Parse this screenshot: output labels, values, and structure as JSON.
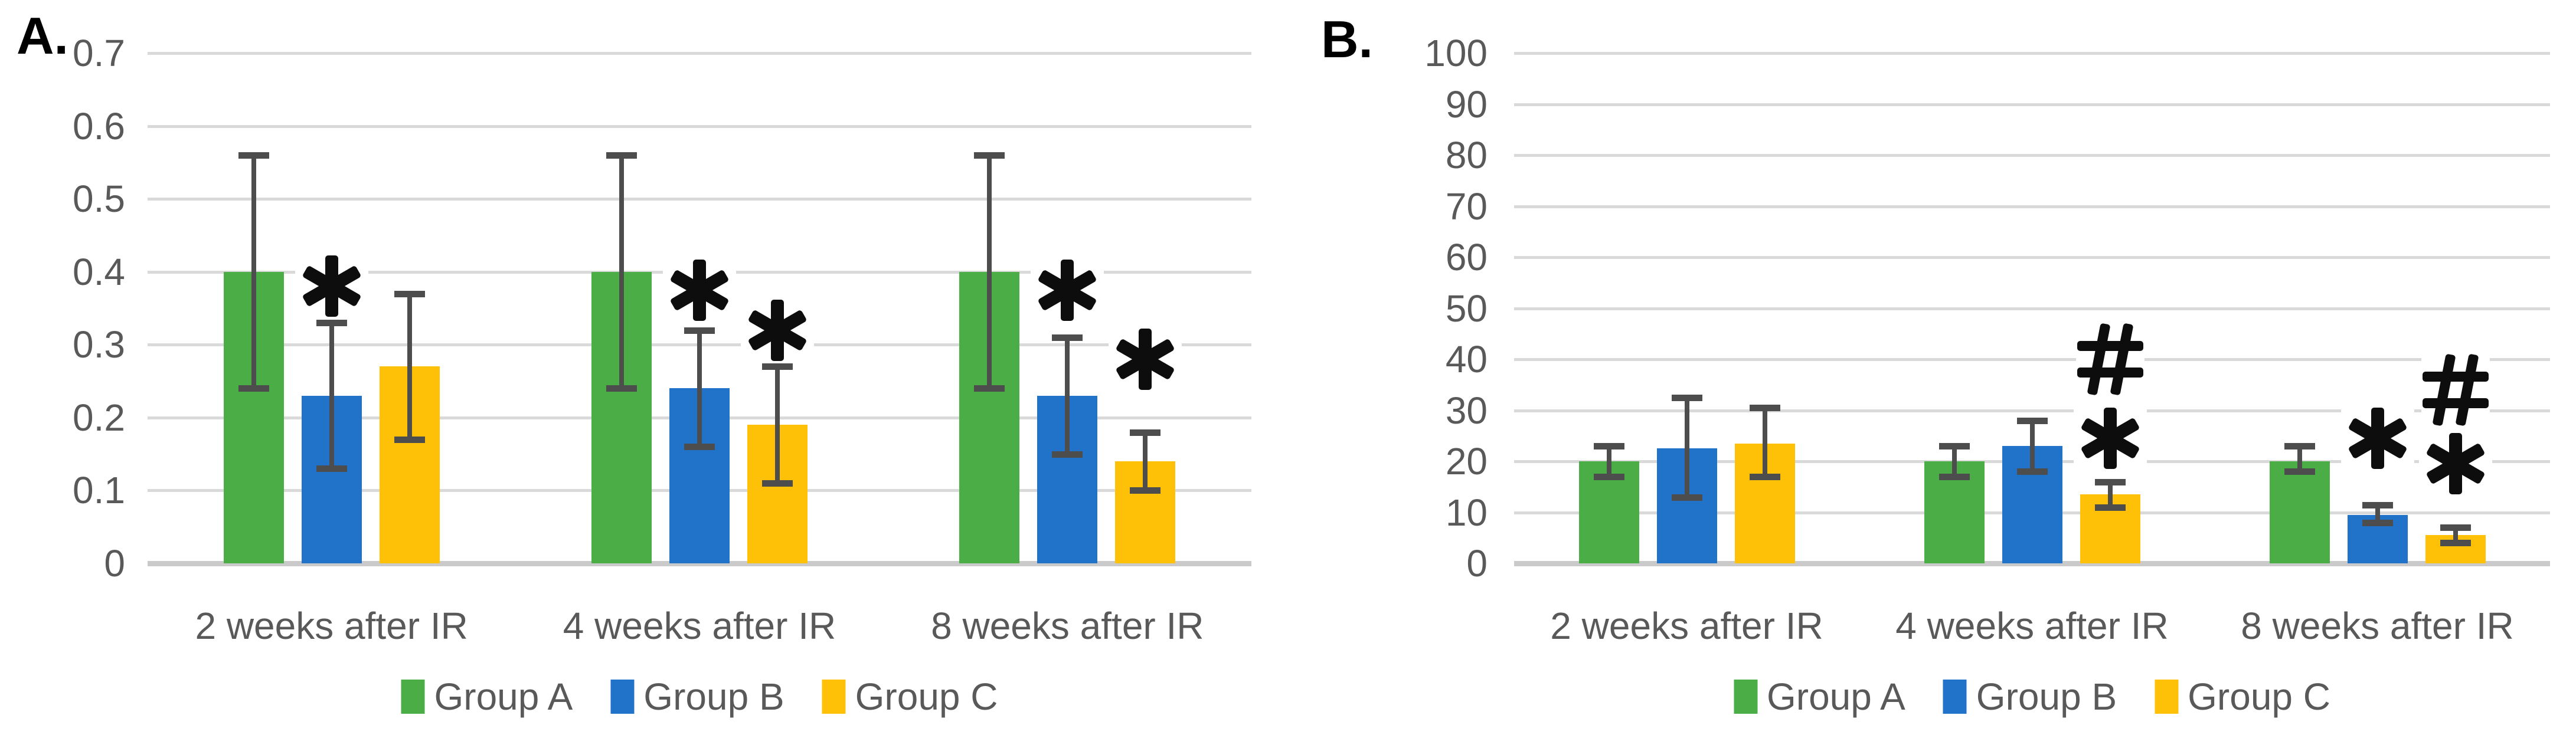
{
  "figure": {
    "background": "#ffffff"
  },
  "colors": {
    "grid": "#d9d9d9",
    "axis_line": "#cacaca",
    "axis_text": "#595959",
    "error_bar": "#4d4d4d",
    "marker": "#0d0d0d",
    "group_a_green": "#4bad46",
    "group_b_blue": "#2173c9",
    "group_c_yellow": "#fec107"
  },
  "chart_data": [
    {
      "id": "A",
      "panel_label": "A.",
      "type": "bar",
      "title": "",
      "xlabel": "",
      "ylabel": "",
      "grid": true,
      "ylim": [
        0,
        0.7
      ],
      "yticks": [
        {
          "v": 0,
          "label": "0"
        },
        {
          "v": 0.1,
          "label": "0.1"
        },
        {
          "v": 0.2,
          "label": "0.2"
        },
        {
          "v": 0.3,
          "label": "0.3"
        },
        {
          "v": 0.4,
          "label": "0.4"
        },
        {
          "v": 0.5,
          "label": "0.5"
        },
        {
          "v": 0.6,
          "label": "0.6"
        },
        {
          "v": 0.7,
          "label": "0.7"
        }
      ],
      "categories": [
        "2 weeks after IR",
        "4 weeks after IR",
        "8 weeks after IR"
      ],
      "series": [
        {
          "name": "Group A",
          "color": "#4bad46",
          "values": [
            0.4,
            0.4,
            0.4
          ],
          "error_low": [
            0.24,
            0.24,
            0.24
          ],
          "error_high": [
            0.56,
            0.56,
            0.56
          ]
        },
        {
          "name": "Group B",
          "color": "#2173c9",
          "values": [
            0.23,
            0.24,
            0.23
          ],
          "error_low": [
            0.13,
            0.16,
            0.15
          ],
          "error_high": [
            0.33,
            0.32,
            0.31
          ]
        },
        {
          "name": "Group C",
          "color": "#fec107",
          "values": [
            0.27,
            0.19,
            0.14
          ],
          "error_low": [
            0.17,
            0.11,
            0.1
          ],
          "error_high": [
            0.37,
            0.27,
            0.18
          ]
        }
      ],
      "significance_markers": [
        {
          "category_index": 0,
          "series": "Group B",
          "symbol": "*",
          "y": 0.38
        },
        {
          "category_index": 1,
          "series": "Group B",
          "symbol": "*",
          "y": 0.375
        },
        {
          "category_index": 1,
          "series": "Group C",
          "symbol": "*",
          "y": 0.32
        },
        {
          "category_index": 2,
          "series": "Group B",
          "symbol": "*",
          "y": 0.375
        },
        {
          "category_index": 2,
          "series": "Group C",
          "symbol": "*",
          "y": 0.28
        }
      ],
      "legend": {
        "position": "bottom",
        "entries": [
          "Group A",
          "Group B",
          "Group C"
        ]
      }
    },
    {
      "id": "B",
      "panel_label": "B.",
      "type": "bar",
      "title": "",
      "xlabel": "",
      "ylabel": "",
      "grid": true,
      "ylim": [
        0,
        100
      ],
      "yticks": [
        {
          "v": 0,
          "label": "0"
        },
        {
          "v": 10,
          "label": "10"
        },
        {
          "v": 20,
          "label": "20"
        },
        {
          "v": 30,
          "label": "30"
        },
        {
          "v": 40,
          "label": "40"
        },
        {
          "v": 50,
          "label": "50"
        },
        {
          "v": 60,
          "label": "60"
        },
        {
          "v": 70,
          "label": "70"
        },
        {
          "v": 80,
          "label": "80"
        },
        {
          "v": 90,
          "label": "90"
        },
        {
          "v": 100,
          "label": "100"
        }
      ],
      "categories": [
        "2 weeks after IR",
        "4 weeks after IR",
        "8 weeks after IR"
      ],
      "series": [
        {
          "name": "Group A",
          "color": "#4bad46",
          "values": [
            20,
            20,
            20
          ],
          "error_low": [
            17,
            17,
            18
          ],
          "error_high": [
            23,
            23,
            23
          ]
        },
        {
          "name": "Group B",
          "color": "#2173c9",
          "values": [
            22.5,
            23,
            9.5
          ],
          "error_low": [
            13,
            18,
            8
          ],
          "error_high": [
            32.5,
            28,
            11.5
          ]
        },
        {
          "name": "Group C",
          "color": "#fec107",
          "values": [
            23.5,
            13.5,
            5.5
          ],
          "error_low": [
            17,
            11,
            4
          ],
          "error_high": [
            30.5,
            16,
            7
          ]
        }
      ],
      "significance_markers": [
        {
          "category_index": 1,
          "series": "Group C",
          "symbol": "#",
          "y": 40
        },
        {
          "category_index": 1,
          "series": "Group C",
          "symbol": "*",
          "y": 24.5
        },
        {
          "category_index": 2,
          "series": "Group B",
          "symbol": "*",
          "y": 24.5
        },
        {
          "category_index": 2,
          "series": "Group C",
          "symbol": "#",
          "y": 34
        },
        {
          "category_index": 2,
          "series": "Group C",
          "symbol": "*",
          "y": 19.5
        }
      ],
      "legend": {
        "position": "bottom",
        "entries": [
          "Group A",
          "Group B",
          "Group C"
        ]
      }
    }
  ]
}
